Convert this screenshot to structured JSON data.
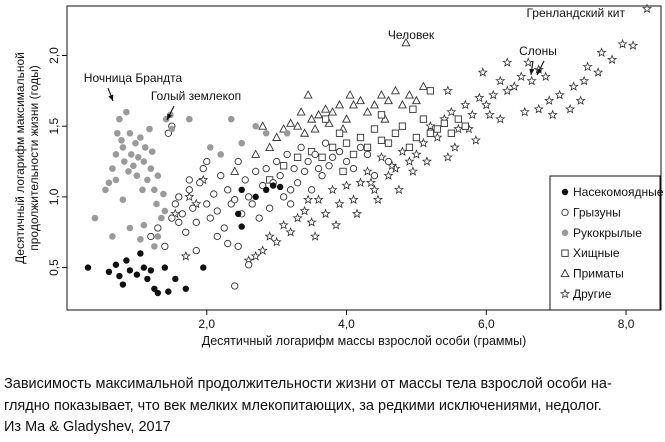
{
  "chart_data": {
    "type": "scatter",
    "xlabel": "Десятичный логарифм массы взрослой особи (граммы)",
    "ylabel_line1": "Десятичный логарифм максимальной",
    "ylabel_line2": "продолжительности жизни (годы)",
    "xlim": [
      0.0,
      8.5
    ],
    "ylim": [
      0.2,
      2.35
    ],
    "x_ticks": [
      2.0,
      4.0,
      6.0,
      8.0
    ],
    "x_tick_labels": [
      "2,0",
      "4,0",
      "6,0",
      "8,0"
    ],
    "y_ticks": [
      0.5,
      1.0,
      1.5,
      2.0
    ],
    "y_tick_labels": [
      "0,5",
      "1,0",
      "1,5",
      "2,0"
    ],
    "grid": false,
    "legend_position": "right",
    "annotations": [
      {
        "text": "Ночница Брандта",
        "x": 0.75,
        "y": 1.63
      },
      {
        "text": "Голый землекоп",
        "x": 1.55,
        "y": 1.5
      },
      {
        "text": "Человек",
        "x": 4.85,
        "y": 2.08
      },
      {
        "text": "Слоны",
        "x": 6.65,
        "y": 1.85
      },
      {
        "text": "Гренландский кит",
        "x": 8.3,
        "y": 2.33
      }
    ],
    "series": [
      {
        "name": "Насекомоядные",
        "marker": "filled-circle",
        "points": [
          [
            0.3,
            0.5
          ],
          [
            0.6,
            0.47
          ],
          [
            0.7,
            0.52
          ],
          [
            0.75,
            0.44
          ],
          [
            0.8,
            0.38
          ],
          [
            0.85,
            0.55
          ],
          [
            0.9,
            0.48
          ],
          [
            1.0,
            0.45
          ],
          [
            1.05,
            0.6
          ],
          [
            1.1,
            0.5
          ],
          [
            1.15,
            0.42
          ],
          [
            1.2,
            0.48
          ],
          [
            1.25,
            0.35
          ],
          [
            1.3,
            0.32
          ],
          [
            1.4,
            0.5
          ],
          [
            1.45,
            0.33
          ],
          [
            1.55,
            0.42
          ],
          [
            1.7,
            0.35
          ],
          [
            1.95,
            0.5
          ],
          [
            2.45,
            0.88
          ],
          [
            2.5,
            0.79
          ],
          [
            2.5,
            1.05
          ],
          [
            2.85,
            1.05
          ],
          [
            2.95,
            1.08
          ],
          [
            3.05,
            1.07
          ],
          [
            2.7,
            1.0
          ]
        ]
      },
      {
        "name": "Грызуны",
        "marker": "open-circle",
        "points": [
          [
            1.2,
            0.72
          ],
          [
            1.3,
            0.78
          ],
          [
            1.4,
            0.65
          ],
          [
            1.5,
            0.85
          ],
          [
            1.55,
            0.95
          ],
          [
            1.6,
            1.0
          ],
          [
            1.65,
            0.88
          ],
          [
            1.7,
            0.75
          ],
          [
            1.75,
            1.05
          ],
          [
            1.8,
            0.92
          ],
          [
            1.85,
            0.82
          ],
          [
            1.9,
            1.1
          ],
          [
            1.95,
            1.2
          ],
          [
            2.0,
            0.95
          ],
          [
            2.05,
            0.85
          ],
          [
            2.1,
            1.02
          ],
          [
            2.15,
            0.9
          ],
          [
            2.2,
            1.15
          ],
          [
            2.25,
            0.78
          ],
          [
            2.3,
            1.05
          ],
          [
            2.35,
            0.95
          ],
          [
            2.4,
            0.98
          ],
          [
            2.45,
            1.25
          ],
          [
            2.5,
            0.88
          ],
          [
            2.55,
            1.12
          ],
          [
            2.6,
            1.0
          ],
          [
            2.65,
            0.95
          ],
          [
            2.7,
            1.18
          ],
          [
            2.75,
            0.85
          ],
          [
            2.8,
            1.08
          ],
          [
            2.85,
            1.2
          ],
          [
            2.9,
            0.92
          ],
          [
            2.95,
            1.1
          ],
          [
            3.0,
            1.25
          ],
          [
            3.05,
            1.15
          ],
          [
            3.1,
            1.0
          ],
          [
            3.15,
            1.3
          ],
          [
            3.2,
            1.05
          ],
          [
            3.25,
            1.2
          ],
          [
            3.3,
            1.1
          ],
          [
            3.35,
            1.35
          ],
          [
            3.4,
            1.18
          ],
          [
            3.45,
            1.25
          ],
          [
            3.5,
            1.05
          ],
          [
            3.55,
            1.3
          ],
          [
            3.6,
            1.2
          ],
          [
            3.65,
            1.15
          ],
          [
            3.7,
            1.38
          ],
          [
            3.75,
            1.22
          ],
          [
            3.8,
            1.28
          ],
          [
            3.9,
            1.32
          ],
          [
            4.0,
            1.25
          ],
          [
            4.1,
            1.2
          ],
          [
            4.2,
            1.35
          ],
          [
            4.3,
            1.3
          ],
          [
            4.4,
            1.15
          ],
          [
            4.6,
            1.25
          ],
          [
            1.5,
            1.5
          ],
          [
            1.45,
            1.45
          ],
          [
            2.3,
            0.67
          ],
          [
            2.6,
            0.52
          ],
          [
            1.85,
            0.62
          ],
          [
            2.15,
            0.72
          ],
          [
            2.45,
            0.65
          ],
          [
            3.2,
            0.95
          ],
          [
            2.4,
            0.37
          ],
          [
            1.6,
            0.82
          ],
          [
            1.75,
            1.12
          ],
          [
            2.0,
            1.25
          ]
        ]
      },
      {
        "name": "Рукокрылые",
        "marker": "gray-circle",
        "points": [
          [
            0.4,
            0.85
          ],
          [
            0.55,
            1.05
          ],
          [
            0.6,
            1.1
          ],
          [
            0.65,
            1.2
          ],
          [
            0.7,
            1.3
          ],
          [
            0.72,
            1.45
          ],
          [
            0.75,
            1.55
          ],
          [
            0.78,
            1.4
          ],
          [
            0.8,
            1.35
          ],
          [
            0.82,
            1.25
          ],
          [
            0.85,
            1.6
          ],
          [
            0.88,
            1.18
          ],
          [
            0.9,
            1.45
          ],
          [
            0.92,
            1.3
          ],
          [
            0.95,
            1.22
          ],
          [
            0.98,
            1.38
          ],
          [
            1.0,
            1.15
          ],
          [
            1.02,
            1.28
          ],
          [
            1.05,
            1.42
          ],
          [
            1.08,
            1.05
          ],
          [
            1.1,
            1.25
          ],
          [
            1.12,
            1.35
          ],
          [
            1.15,
            1.12
          ],
          [
            1.18,
            1.48
          ],
          [
            1.2,
            1.2
          ],
          [
            1.22,
            1.32
          ],
          [
            1.25,
            1.05
          ],
          [
            1.28,
            0.95
          ],
          [
            1.3,
            1.15
          ],
          [
            1.35,
            0.85
          ],
          [
            1.38,
            1.02
          ],
          [
            1.4,
            0.9
          ],
          [
            1.42,
            1.55
          ],
          [
            1.48,
            1.58
          ],
          [
            1.5,
            1.48
          ],
          [
            0.7,
            1.12
          ],
          [
            0.8,
            0.98
          ],
          [
            0.9,
            0.78
          ],
          [
            1.05,
            0.7
          ],
          [
            1.1,
            0.8
          ],
          [
            1.25,
            0.65
          ],
          [
            0.65,
            0.72
          ],
          [
            2.05,
            1.35
          ],
          [
            2.2,
            1.3
          ],
          [
            2.35,
            1.55
          ],
          [
            2.5,
            1.38
          ],
          [
            2.7,
            1.5
          ],
          [
            2.85,
            1.45
          ],
          [
            3.15,
            1.45
          ],
          [
            1.75,
            1.55
          ],
          [
            1.3,
            0.72
          ]
        ]
      },
      {
        "name": "Хищные",
        "marker": "open-square",
        "points": [
          [
            2.9,
            1.12
          ],
          [
            3.1,
            1.22
          ],
          [
            3.3,
            1.28
          ],
          [
            3.5,
            1.32
          ],
          [
            3.65,
            1.28
          ],
          [
            3.8,
            1.35
          ],
          [
            3.9,
            1.45
          ],
          [
            4.0,
            1.38
          ],
          [
            4.1,
            1.3
          ],
          [
            4.2,
            1.42
          ],
          [
            4.3,
            1.35
          ],
          [
            4.4,
            1.48
          ],
          [
            4.5,
            1.4
          ],
          [
            4.6,
            1.38
          ],
          [
            4.7,
            1.45
          ],
          [
            4.8,
            1.5
          ],
          [
            4.9,
            1.35
          ],
          [
            5.0,
            1.42
          ],
          [
            5.1,
            1.55
          ],
          [
            5.2,
            1.45
          ],
          [
            5.3,
            1.48
          ],
          [
            5.4,
            1.52
          ],
          [
            5.5,
            1.45
          ],
          [
            5.6,
            1.55
          ],
          [
            5.7,
            1.5
          ],
          [
            5.2,
            1.75
          ],
          [
            4.5,
            1.58
          ],
          [
            3.7,
            1.55
          ],
          [
            4.95,
            1.62
          ],
          [
            3.95,
            1.18
          ]
        ]
      },
      {
        "name": "Приматы",
        "marker": "open-triangle",
        "points": [
          [
            2.4,
            1.18
          ],
          [
            2.7,
            1.3
          ],
          [
            2.9,
            1.35
          ],
          [
            3.0,
            1.42
          ],
          [
            3.1,
            1.48
          ],
          [
            3.2,
            1.52
          ],
          [
            3.3,
            1.5
          ],
          [
            3.4,
            1.45
          ],
          [
            3.5,
            1.55
          ],
          [
            3.6,
            1.58
          ],
          [
            3.7,
            1.62
          ],
          [
            3.8,
            1.6
          ],
          [
            3.9,
            1.65
          ],
          [
            4.0,
            1.55
          ],
          [
            4.1,
            1.65
          ],
          [
            4.2,
            1.68
          ],
          [
            4.3,
            1.6
          ],
          [
            4.4,
            1.65
          ],
          [
            4.5,
            1.72
          ],
          [
            4.6,
            1.68
          ],
          [
            4.7,
            1.75
          ],
          [
            4.8,
            1.65
          ],
          [
            4.9,
            1.72
          ],
          [
            5.0,
            1.68
          ],
          [
            5.1,
            1.78
          ],
          [
            4.85,
            2.09
          ],
          [
            3.45,
            1.72
          ],
          [
            3.55,
            1.48
          ],
          [
            3.75,
            1.52
          ],
          [
            4.05,
            1.72
          ],
          [
            4.55,
            1.55
          ],
          [
            3.35,
            1.6
          ],
          [
            2.8,
            1.5
          ],
          [
            3.95,
            1.48
          ]
        ]
      },
      {
        "name": "Другие",
        "marker": "open-star",
        "points": [
          [
            8.3,
            2.33
          ],
          [
            8.1,
            2.07
          ],
          [
            7.95,
            2.08
          ],
          [
            7.8,
            1.97
          ],
          [
            7.6,
            1.88
          ],
          [
            7.4,
            1.82
          ],
          [
            7.25,
            1.78
          ],
          [
            7.05,
            1.72
          ],
          [
            6.95,
            1.58
          ],
          [
            7.2,
            1.62
          ],
          [
            6.85,
            1.85
          ],
          [
            6.75,
            1.9
          ],
          [
            6.6,
            1.95
          ],
          [
            6.5,
            1.85
          ],
          [
            6.4,
            1.78
          ],
          [
            6.3,
            1.75
          ],
          [
            6.2,
            1.82
          ],
          [
            6.1,
            1.72
          ],
          [
            6.0,
            1.65
          ],
          [
            5.9,
            1.7
          ],
          [
            5.8,
            1.58
          ],
          [
            5.7,
            1.65
          ],
          [
            5.6,
            1.48
          ],
          [
            5.5,
            1.6
          ],
          [
            5.4,
            1.55
          ],
          [
            5.3,
            1.42
          ],
          [
            5.2,
            1.5
          ],
          [
            5.1,
            1.38
          ],
          [
            5.0,
            1.3
          ],
          [
            4.9,
            1.25
          ],
          [
            4.8,
            1.32
          ],
          [
            4.7,
            1.2
          ],
          [
            4.6,
            1.15
          ],
          [
            4.5,
            1.28
          ],
          [
            4.4,
            1.05
          ],
          [
            4.3,
            1.18
          ],
          [
            4.2,
            1.1
          ],
          [
            4.1,
            0.98
          ],
          [
            4.0,
            1.08
          ],
          [
            3.9,
            0.95
          ],
          [
            3.8,
            1.05
          ],
          [
            3.7,
            0.88
          ],
          [
            3.6,
            0.98
          ],
          [
            3.5,
            0.82
          ],
          [
            3.4,
            0.9
          ],
          [
            3.3,
            0.85
          ],
          [
            3.2,
            0.75
          ],
          [
            3.1,
            0.8
          ],
          [
            3.0,
            0.68
          ],
          [
            2.9,
            0.72
          ],
          [
            2.8,
            0.62
          ],
          [
            2.7,
            0.58
          ],
          [
            2.6,
            0.55
          ],
          [
            6.55,
            1.6
          ],
          [
            6.75,
            1.62
          ],
          [
            6.2,
            1.55
          ],
          [
            5.85,
            1.4
          ],
          [
            5.45,
            1.28
          ],
          [
            5.15,
            1.25
          ],
          [
            4.75,
            1.05
          ],
          [
            4.45,
            0.98
          ],
          [
            4.15,
            0.88
          ],
          [
            3.85,
            0.8
          ],
          [
            3.55,
            0.72
          ],
          [
            1.7,
            0.58
          ],
          [
            1.75,
            1.0
          ],
          [
            1.85,
            0.95
          ],
          [
            1.95,
            1.12
          ],
          [
            1.55,
            0.88
          ],
          [
            6.65,
            1.82
          ],
          [
            7.45,
            1.92
          ],
          [
            7.65,
            2.02
          ],
          [
            7.35,
            1.68
          ],
          [
            6.9,
            1.68
          ],
          [
            6.05,
            1.58
          ],
          [
            5.75,
            1.48
          ],
          [
            5.55,
            1.35
          ],
          [
            4.95,
            1.18
          ],
          [
            4.65,
            1.22
          ],
          [
            4.35,
            1.1
          ],
          [
            6.3,
            1.95
          ],
          [
            5.95,
            1.88
          ],
          [
            5.45,
            1.75
          ],
          [
            3.45,
            0.98
          ]
        ]
      }
    ]
  },
  "caption": {
    "line1": "Зависимость максимальной продолжительности жизни от массы тела взрослой особи на-",
    "line2": "глядно показывает, что век мелких млекопитающих, за редкими исключениями, недолог.",
    "line3": "Из Ma & Gladyshev, 2017"
  }
}
